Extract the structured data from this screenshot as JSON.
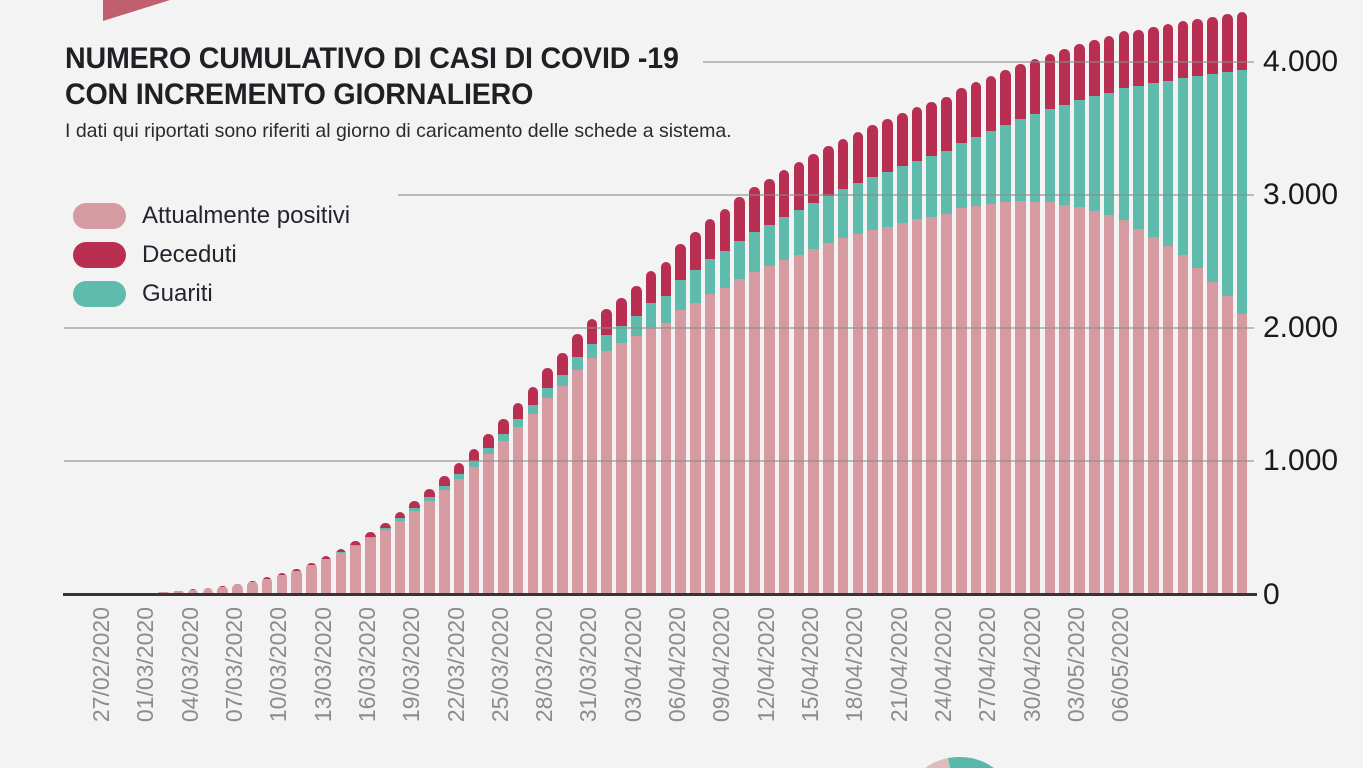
{
  "page": {
    "background_color": "#f4f3f3"
  },
  "decorations": {
    "top_triangle_color": "#c05f6e",
    "bottom_pie_left_color": "#ddbcbe",
    "bottom_pie_right_color": "#58b9aa"
  },
  "header": {
    "title_line1": "NUMERO CUMULATIVO DI CASI DI COVID -19",
    "title_line2": "CON INCREMENTO GIORNALIERO",
    "subtitle": "I dati qui riportati sono riferiti al giorno di caricamento delle schede a sistema."
  },
  "legend": {
    "items": [
      {
        "label": "Attualmente positivi",
        "color": "#d69ba0"
      },
      {
        "label": "Deceduti",
        "color": "#b82f52"
      },
      {
        "label": "Guariti",
        "color": "#5fbcac"
      }
    ]
  },
  "y_axis": {
    "tick_labels": [
      "4.000",
      "3.000",
      "2.000",
      "1.000",
      "0"
    ],
    "tick_values": [
      4000,
      3000,
      2000,
      1000,
      0
    ]
  },
  "chart_data": {
    "type": "bar",
    "stacked": true,
    "title": "Numero cumulativo di casi di COVID-19 con incremento giornaliero",
    "ylim": [
      0,
      4400
    ],
    "grid": "horizontal",
    "legend_position": "upper-left",
    "x_tick_step": 3,
    "x_tick_label_rotation": 90,
    "x_last_labeled_tick": "06/05/2020",
    "x": [
      "27/02/2020",
      "28/02/2020",
      "29/02/2020",
      "01/03/2020",
      "02/03/2020",
      "03/03/2020",
      "04/03/2020",
      "05/03/2020",
      "06/03/2020",
      "07/03/2020",
      "08/03/2020",
      "09/03/2020",
      "10/03/2020",
      "11/03/2020",
      "12/03/2020",
      "13/03/2020",
      "14/03/2020",
      "15/03/2020",
      "16/03/2020",
      "17/03/2020",
      "18/03/2020",
      "19/03/2020",
      "20/03/2020",
      "21/03/2020",
      "22/03/2020",
      "23/03/2020",
      "24/03/2020",
      "25/03/2020",
      "26/03/2020",
      "27/03/2020",
      "28/03/2020",
      "29/03/2020",
      "30/03/2020",
      "31/03/2020",
      "01/04/2020",
      "02/04/2020",
      "03/04/2020",
      "04/04/2020",
      "05/04/2020",
      "06/04/2020",
      "07/04/2020",
      "08/04/2020",
      "09/04/2020",
      "10/04/2020",
      "11/04/2020",
      "12/04/2020",
      "13/04/2020",
      "14/04/2020",
      "15/04/2020",
      "16/04/2020",
      "17/04/2020",
      "18/04/2020",
      "19/04/2020",
      "20/04/2020",
      "21/04/2020",
      "22/04/2020",
      "23/04/2020",
      "24/04/2020",
      "25/04/2020",
      "26/04/2020",
      "27/04/2020",
      "28/04/2020",
      "29/04/2020",
      "30/04/2020",
      "01/05/2020",
      "02/05/2020",
      "03/05/2020",
      "04/05/2020",
      "05/05/2020",
      "06/05/2020",
      "07/05/2020",
      "08/05/2020",
      "09/05/2020",
      "10/05/2020",
      "11/05/2020",
      "12/05/2020",
      "13/05/2020",
      "14/05/2020",
      "15/05/2020",
      "16/05/2020"
    ],
    "series": [
      {
        "name": "Attualmente positivi",
        "color": "#d69ba0",
        "stack_order": "bottom",
        "values": [
          3,
          4,
          6,
          7,
          9,
          13,
          18,
          25,
          34,
          47,
          60,
          75,
          91,
          116,
          143,
          177,
          218,
          263,
          312,
          365,
          423,
          485,
          554,
          628,
          705,
          785,
          870,
          960,
          1054,
          1152,
          1255,
          1356,
          1476,
          1565,
          1687,
          1774,
          1830,
          1887,
          1939,
          2005,
          2035,
          2132,
          2185,
          2253,
          2302,
          2365,
          2420,
          2465,
          2510,
          2551,
          2592,
          2635,
          2672,
          2704,
          2735,
          2761,
          2788,
          2815,
          2836,
          2857,
          2897,
          2915,
          2932,
          2947,
          2955,
          2949,
          2942,
          2926,
          2909,
          2878,
          2847,
          2813,
          2745,
          2686,
          2616,
          2544,
          2451,
          2347,
          2243,
          2102
        ]
      },
      {
        "name": "Guariti",
        "color": "#5fbcac",
        "stack_order": "middle",
        "values": [
          0,
          0,
          0,
          0,
          0,
          0,
          0,
          0,
          0,
          0,
          0,
          0,
          0,
          1,
          2,
          3,
          4,
          6,
          8,
          10,
          12,
          15,
          18,
          21,
          25,
          30,
          35,
          40,
          46,
          53,
          60,
          68,
          76,
          85,
          95,
          105,
          115,
          125,
          150,
          180,
          205,
          228,
          250,
          264,
          277,
          290,
          300,
          310,
          320,
          332,
          345,
          355,
          368,
          381,
          395,
          410,
          425,
          440,
          456,
          472,
          495,
          520,
          546,
          575,
          610,
          655,
          700,
          750,
          800,
          860,
          920,
          990,
          1070,
          1150,
          1240,
          1330,
          1440,
          1560,
          1680,
          1835
        ]
      },
      {
        "name": "Deceduti",
        "color": "#b82f52",
        "stack_order": "top",
        "values": [
          0,
          0,
          0,
          1,
          1,
          1,
          2,
          3,
          4,
          5,
          6,
          7,
          9,
          11,
          13,
          15,
          18,
          21,
          25,
          30,
          35,
          40,
          48,
          56,
          65,
          75,
          85,
          95,
          105,
          115,
          125,
          136,
          148,
          160,
          173,
          186,
          200,
          213,
          226,
          240,
          255,
          270,
          285,
          298,
          311,
          325,
          335,
          345,
          355,
          362,
          368,
          375,
          380,
          385,
          390,
          394,
          397,
          400,
          403,
          406,
          408,
          410,
          412,
          413,
          415,
          416,
          418,
          419,
          421,
          422,
          423,
          424,
          425,
          426,
          427,
          428,
          429,
          430,
          430,
          431
        ]
      }
    ]
  }
}
